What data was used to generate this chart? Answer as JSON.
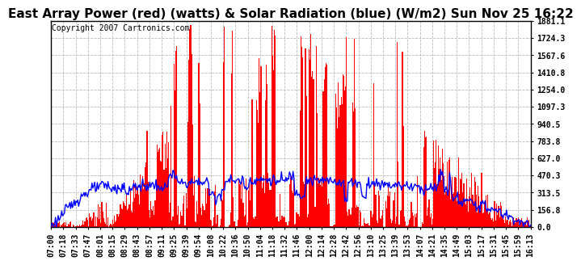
{
  "title": "East Array Power (red) (watts) & Solar Radiation (blue) (W/m2) Sun Nov 25 16:22",
  "copyright": "Copyright 2007 Cartronics.com",
  "background_color": "#ffffff",
  "plot_bg_color": "#ffffff",
  "grid_color": "#bbbbbb",
  "yticks": [
    0.0,
    156.8,
    313.5,
    470.3,
    627.0,
    783.8,
    940.5,
    1097.3,
    1254.0,
    1410.8,
    1567.6,
    1724.3,
    1881.1
  ],
  "ymax": 1881.1,
  "ymin": 0.0,
  "x_labels": [
    "07:00",
    "07:18",
    "07:33",
    "07:47",
    "08:01",
    "08:15",
    "08:29",
    "08:43",
    "08:57",
    "09:11",
    "09:25",
    "09:39",
    "09:54",
    "10:08",
    "10:22",
    "10:36",
    "10:50",
    "11:04",
    "11:18",
    "11:32",
    "11:46",
    "12:00",
    "12:14",
    "12:28",
    "12:42",
    "12:56",
    "13:10",
    "13:25",
    "13:39",
    "13:53",
    "14:07",
    "14:21",
    "14:35",
    "14:49",
    "15:03",
    "15:17",
    "15:31",
    "15:45",
    "15:59",
    "16:13"
  ],
  "title_fontsize": 11,
  "copyright_fontsize": 7,
  "tick_fontsize": 7,
  "red_color": "#ff0000",
  "blue_color": "#0000ff"
}
